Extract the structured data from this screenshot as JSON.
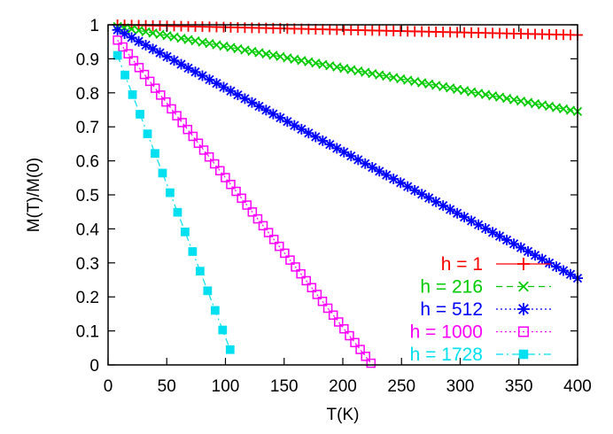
{
  "chart_data": {
    "type": "line",
    "xlabel": "T(K)",
    "ylabel": "M(T)/M(0)",
    "xlim": [
      0,
      400
    ],
    "ylim": [
      0,
      1
    ],
    "x_ticks": [
      "0",
      "50",
      "100",
      "150",
      "200",
      "250",
      "300",
      "350",
      "400"
    ],
    "y_ticks": [
      "0",
      "0.1",
      "0.2",
      "0.3",
      "0.4",
      "0.5",
      "0.6",
      "0.7",
      "0.8",
      "0.9",
      "1"
    ],
    "legend_position": "bottom-right inside plot",
    "grid": false,
    "series": [
      {
        "name": "h = 1",
        "color": "#ff0000",
        "marker": "plus",
        "dash": "solid",
        "x_start": 8,
        "x_end": 400,
        "y_start": 1.0,
        "y_end": 0.97
      },
      {
        "name": "h = 216",
        "color": "#00cc00",
        "marker": "cross",
        "dash": "dashed",
        "x_start": 8,
        "x_end": 400,
        "y_start": 0.995,
        "y_end": 0.745
      },
      {
        "name": "h = 512",
        "color": "#0000ff",
        "marker": "star",
        "dash": "dotted",
        "x_start": 8,
        "x_end": 400,
        "y_start": 0.985,
        "y_end": 0.255
      },
      {
        "name": "h = 1000",
        "color": "#ff00ff",
        "marker": "open-square",
        "dash": "dotted",
        "x_start": 8,
        "x_end": 224,
        "y_start": 0.955,
        "y_end": 0.005
      },
      {
        "name": "h = 1728",
        "color": "#00e0f0",
        "marker": "filled-square",
        "dash": "dashdot",
        "x_start": 8,
        "x_end": 104,
        "y_start": 0.91,
        "y_end": 0.045
      }
    ]
  }
}
